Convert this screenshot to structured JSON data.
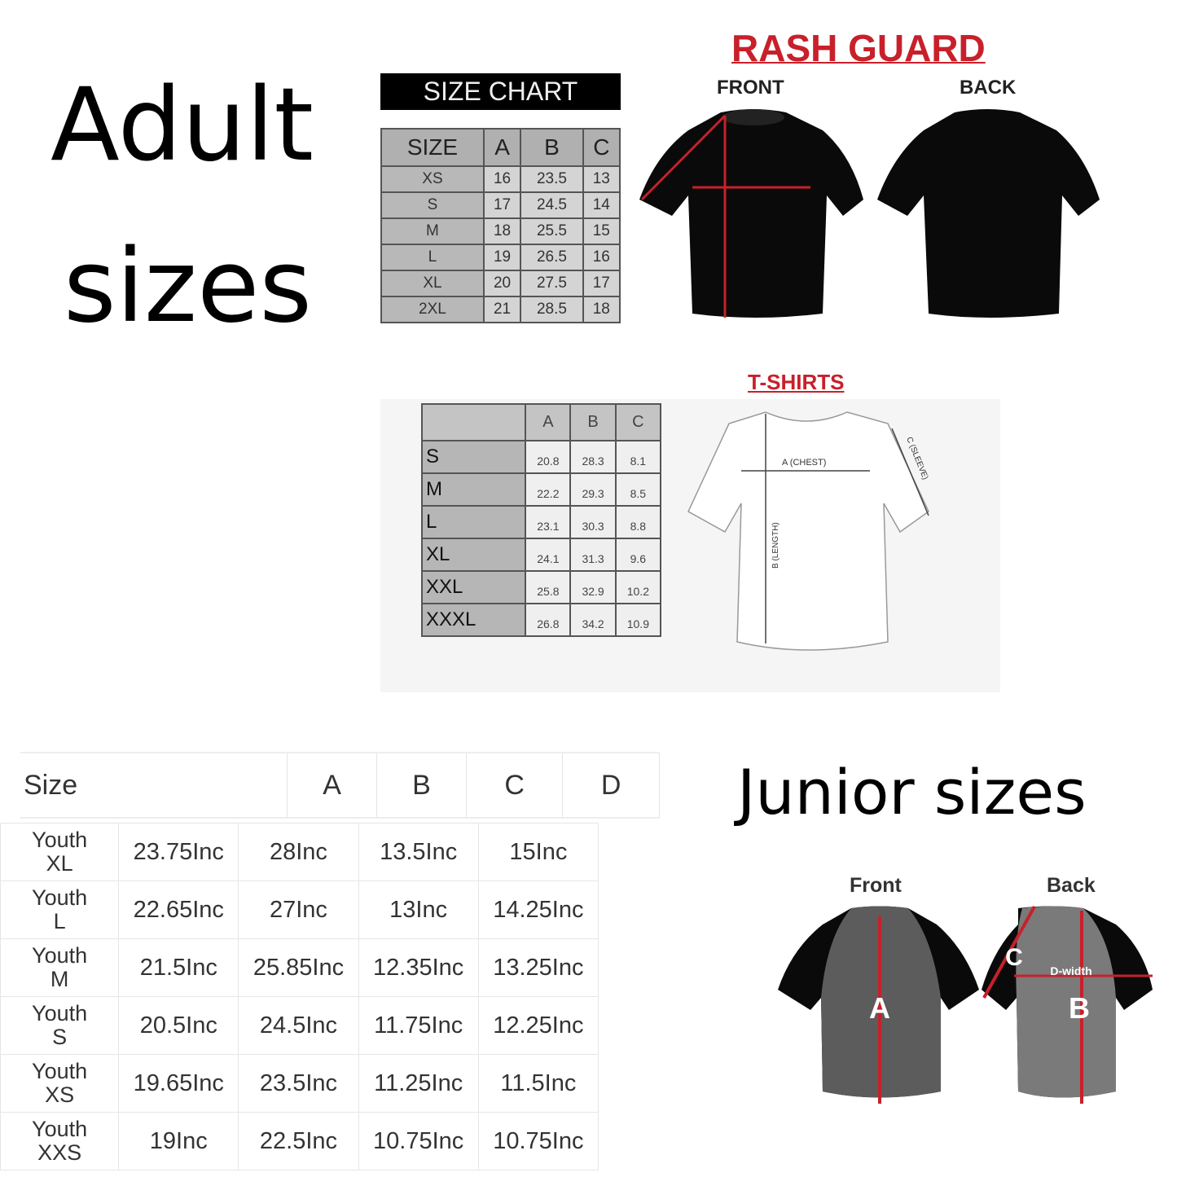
{
  "adult_heading": {
    "line1": "Adult",
    "line2": "sizes"
  },
  "junior_heading": "Junior sizes",
  "rash_guard": {
    "title": "RASH GUARD",
    "front_label": "FRONT",
    "back_label": "BACK",
    "chart_title": "SIZE CHART",
    "columns": [
      "SIZE",
      "A",
      "B",
      "C"
    ],
    "rows": [
      [
        "XS",
        "16",
        "23.5",
        "13"
      ],
      [
        "S",
        "17",
        "24.5",
        "14"
      ],
      [
        "M",
        "18",
        "25.5",
        "15"
      ],
      [
        "L",
        "19",
        "26.5",
        "16"
      ],
      [
        "XL",
        "20",
        "27.5",
        "17"
      ],
      [
        "2XL",
        "21",
        "28.5",
        "18"
      ]
    ]
  },
  "tshirts": {
    "title": "T-SHIRTS",
    "columns": [
      "",
      "A",
      "B",
      "C"
    ],
    "rows": [
      [
        "S",
        "20.8",
        "28.3",
        "8.1"
      ],
      [
        "M",
        "22.2",
        "29.3",
        "8.5"
      ],
      [
        "L",
        "23.1",
        "30.3",
        "8.8"
      ],
      [
        "XL",
        "24.1",
        "31.3",
        "9.6"
      ],
      [
        "XXL",
        "25.8",
        "32.9",
        "10.2"
      ],
      [
        "XXXL",
        "26.8",
        "34.2",
        "10.9"
      ]
    ],
    "diagram_labels": {
      "chest": "A (CHEST)",
      "length": "B (LENGTH)",
      "sleeve": "C (SLEEVE)"
    }
  },
  "junior": {
    "columns": [
      "Size",
      "A",
      "B",
      "C",
      "D"
    ],
    "rows": [
      [
        "Youth XL",
        "23.75Inc",
        "28Inc",
        "13.5Inc",
        "15Inc"
      ],
      [
        "Youth L",
        "22.65Inc",
        "27Inc",
        "13Inc",
        "14.25Inc"
      ],
      [
        "Youth M",
        "21.5Inc",
        "25.85Inc",
        "12.35Inc",
        "13.25Inc"
      ],
      [
        "Youth S",
        "20.5Inc",
        "24.5Inc",
        "11.75Inc",
        "12.25Inc"
      ],
      [
        "Youth XS",
        "19.65Inc",
        "23.5Inc",
        "11.25Inc",
        "11.5Inc"
      ],
      [
        "Youth XXS",
        "19Inc",
        "22.5Inc",
        "10.75Inc",
        "10.75Inc"
      ]
    ],
    "front_label": "Front",
    "back_label": "Back",
    "diagram_labels": {
      "a": "A",
      "b": "B",
      "c": "C",
      "d": "D-width"
    }
  },
  "colors": {
    "accent_red": "#c8202a",
    "shirt_black": "#0a0a0a",
    "shirt_gray": "#6e6e6e"
  }
}
